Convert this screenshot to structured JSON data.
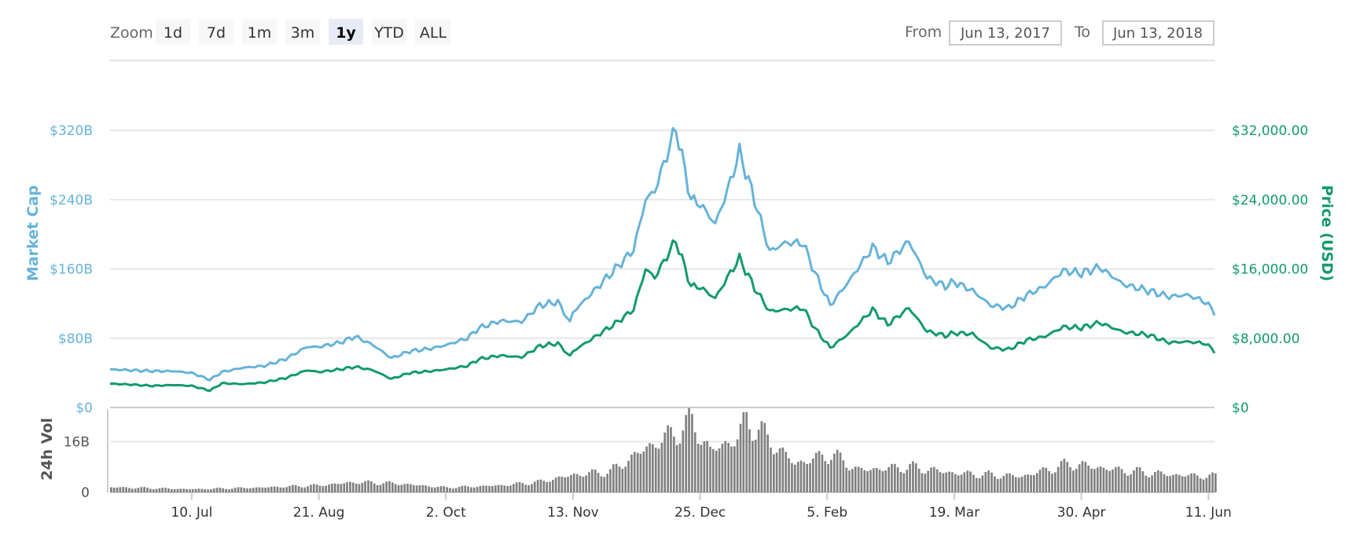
{
  "controls": {
    "zoom_label": "Zoom",
    "zoom_buttons": [
      "1d",
      "7d",
      "1m",
      "3m",
      "1y",
      "YTD",
      "ALL"
    ],
    "zoom_selected": "1y",
    "from_label": "From",
    "from_value": "Jun 13, 2017",
    "to_label": "To",
    "to_value": "Jun 13, 2018"
  },
  "chart_data": {
    "type": "line",
    "x_range": [
      "2017-06-13",
      "2018-06-13"
    ],
    "x_ticks": [
      "10. Jul",
      "21. Aug",
      "2. Oct",
      "13. Nov",
      "25. Dec",
      "5. Feb",
      "19. Mar",
      "30. Apr",
      "11. Jun"
    ],
    "y_left": {
      "label": "Market Cap",
      "ticks": [
        "$0",
        "$80B",
        "$160B",
        "$240B",
        "$320B"
      ],
      "range": [
        0,
        320
      ]
    },
    "y_right": {
      "label": "Price (USD)",
      "ticks": [
        "$0",
        "$8,000.00",
        "$16,000.00",
        "$24,000.00",
        "$32,000.00"
      ],
      "range": [
        0,
        32000
      ]
    },
    "volume": {
      "label": "24h Vol",
      "ticks": [
        "0",
        "16B"
      ],
      "range": [
        0,
        24
      ]
    },
    "grid": true,
    "legend": "none",
    "colors": {
      "market_cap": "#66b3d9",
      "price": "#139a6c",
      "volume": "#808080"
    },
    "series": [
      {
        "key": "market_cap",
        "unit": "B USD",
        "points": [
          [
            "2017-06-13",
            44
          ],
          [
            "2017-06-20",
            43
          ],
          [
            "2017-06-27",
            42
          ],
          [
            "2017-07-04",
            42
          ],
          [
            "2017-07-10",
            40
          ],
          [
            "2017-07-16",
            32
          ],
          [
            "2017-07-20",
            41
          ],
          [
            "2017-07-27",
            46
          ],
          [
            "2017-08-03",
            48
          ],
          [
            "2017-08-10",
            56
          ],
          [
            "2017-08-17",
            70
          ],
          [
            "2017-08-21",
            70
          ],
          [
            "2017-08-28",
            75
          ],
          [
            "2017-09-02",
            82
          ],
          [
            "2017-09-08",
            72
          ],
          [
            "2017-09-14",
            57
          ],
          [
            "2017-09-20",
            65
          ],
          [
            "2017-09-27",
            68
          ],
          [
            "2017-10-02",
            72
          ],
          [
            "2017-10-09",
            80
          ],
          [
            "2017-10-13",
            92
          ],
          [
            "2017-10-20",
            100
          ],
          [
            "2017-10-27",
            99
          ],
          [
            "2017-11-02",
            118
          ],
          [
            "2017-11-08",
            122
          ],
          [
            "2017-11-12",
            98
          ],
          [
            "2017-11-13",
            110
          ],
          [
            "2017-11-20",
            135
          ],
          [
            "2017-11-27",
            160
          ],
          [
            "2017-12-03",
            182
          ],
          [
            "2017-12-07",
            240
          ],
          [
            "2017-12-10",
            250
          ],
          [
            "2017-12-17",
            323
          ],
          [
            "2017-12-22",
            240
          ],
          [
            "2017-12-25",
            235
          ],
          [
            "2017-12-30",
            212
          ],
          [
            "2018-01-03",
            250
          ],
          [
            "2018-01-07",
            295
          ],
          [
            "2018-01-12",
            240
          ],
          [
            "2018-01-17",
            180
          ],
          [
            "2018-01-22",
            190
          ],
          [
            "2018-01-28",
            190
          ],
          [
            "2018-02-01",
            155
          ],
          [
            "2018-02-06",
            118
          ],
          [
            "2018-02-12",
            145
          ],
          [
            "2018-02-20",
            185
          ],
          [
            "2018-02-25",
            168
          ],
          [
            "2018-03-04",
            192
          ],
          [
            "2018-03-10",
            150
          ],
          [
            "2018-03-16",
            140
          ],
          [
            "2018-03-19",
            145
          ],
          [
            "2018-03-25",
            135
          ],
          [
            "2018-03-31",
            118
          ],
          [
            "2018-04-06",
            115
          ],
          [
            "2018-04-12",
            130
          ],
          [
            "2018-04-18,",
            140
          ],
          [
            "2018-04-24",
            158
          ],
          [
            "2018-04-30",
            155
          ],
          [
            "2018-05-06",
            162
          ],
          [
            "2018-05-14",
            142
          ],
          [
            "2018-05-22",
            135
          ],
          [
            "2018-05-29",
            128
          ],
          [
            "2018-06-04",
            130
          ],
          [
            "2018-06-10",
            122
          ],
          [
            "2018-06-13",
            110
          ]
        ]
      },
      {
        "key": "price",
        "unit": "USD",
        "points": [
          [
            "2017-06-13",
            2750
          ],
          [
            "2017-06-20",
            2650
          ],
          [
            "2017-06-27",
            2500
          ],
          [
            "2017-07-04",
            2600
          ],
          [
            "2017-07-10",
            2500
          ],
          [
            "2017-07-16",
            1950
          ],
          [
            "2017-07-20",
            2800
          ],
          [
            "2017-07-27",
            2700
          ],
          [
            "2017-08-03",
            2900
          ],
          [
            "2017-08-10",
            3400
          ],
          [
            "2017-08-17",
            4300
          ],
          [
            "2017-08-21",
            4100
          ],
          [
            "2017-08-28",
            4400
          ],
          [
            "2017-09-02",
            4700
          ],
          [
            "2017-09-08",
            4300
          ],
          [
            "2017-09-14",
            3300
          ],
          [
            "2017-09-20",
            4000
          ],
          [
            "2017-09-27",
            4200
          ],
          [
            "2017-10-02",
            4400
          ],
          [
            "2017-10-09",
            4800
          ],
          [
            "2017-10-13",
            5600
          ],
          [
            "2017-10-20",
            6000
          ],
          [
            "2017-10-27",
            5800
          ],
          [
            "2017-11-02",
            7100
          ],
          [
            "2017-11-08",
            7400
          ],
          [
            "2017-11-12",
            5900
          ],
          [
            "2017-11-13",
            6500
          ],
          [
            "2017-11-20",
            8100
          ],
          [
            "2017-11-27",
            9700
          ],
          [
            "2017-12-03",
            11300
          ],
          [
            "2017-12-07",
            16000
          ],
          [
            "2017-12-10",
            15000
          ],
          [
            "2017-12-17",
            19300
          ],
          [
            "2017-12-22",
            14000
          ],
          [
            "2017-12-25",
            13900
          ],
          [
            "2017-12-30",
            12600
          ],
          [
            "2018-01-03",
            15000
          ],
          [
            "2018-01-07",
            17200
          ],
          [
            "2018-01-12",
            13800
          ],
          [
            "2018-01-17",
            11100
          ],
          [
            "2018-01-22",
            11300
          ],
          [
            "2018-01-28",
            11500
          ],
          [
            "2018-02-01",
            9100
          ],
          [
            "2018-02-06",
            6900
          ],
          [
            "2018-02-12",
            8500
          ],
          [
            "2018-02-20",
            11300
          ],
          [
            "2018-02-25",
            9600
          ],
          [
            "2018-03-04",
            11500
          ],
          [
            "2018-03-10",
            8800
          ],
          [
            "2018-03-16",
            8300
          ],
          [
            "2018-03-19",
            8600
          ],
          [
            "2018-03-25",
            8500
          ],
          [
            "2018-03-31",
            6900
          ],
          [
            "2018-04-06",
            6700
          ],
          [
            "2018-04-12",
            7800
          ],
          [
            "2018-04-18",
            8200
          ],
          [
            "2018-04-24",
            9300
          ],
          [
            "2018-04-30",
            9200
          ],
          [
            "2018-05-06",
            9800
          ],
          [
            "2018-05-14",
            8700
          ],
          [
            "2018-05-22",
            8400
          ],
          [
            "2018-05-29",
            7500
          ],
          [
            "2018-06-04",
            7600
          ],
          [
            "2018-06-10",
            7400
          ],
          [
            "2018-06-13",
            6500
          ]
        ]
      },
      {
        "key": "volume",
        "unit": "B USD",
        "points": [
          [
            "2017-06-13",
            1.6
          ],
          [
            "2017-07-10",
            1.0
          ],
          [
            "2017-08-01",
            1.5
          ],
          [
            "2017-08-21",
            2.2
          ],
          [
            "2017-09-02",
            3.2
          ],
          [
            "2017-09-15",
            2.8
          ],
          [
            "2017-10-02",
            1.5
          ],
          [
            "2017-10-20",
            2.2
          ],
          [
            "2017-11-01",
            3.2
          ],
          [
            "2017-11-13",
            5.5
          ],
          [
            "2017-11-25",
            6.5
          ],
          [
            "2017-12-07",
            14
          ],
          [
            "2017-12-15",
            18
          ],
          [
            "2017-12-22",
            22
          ],
          [
            "2017-12-28",
            13
          ],
          [
            "2018-01-06",
            17
          ],
          [
            "2018-01-09",
            23
          ],
          [
            "2018-01-17",
            16
          ],
          [
            "2018-01-25",
            9
          ],
          [
            "2018-02-06",
            12
          ],
          [
            "2018-02-15",
            7
          ],
          [
            "2018-03-04",
            8
          ],
          [
            "2018-03-19",
            6
          ],
          [
            "2018-04-10",
            5
          ],
          [
            "2018-04-26",
            9
          ],
          [
            "2018-05-12",
            7
          ],
          [
            "2018-05-30",
            5.5
          ],
          [
            "2018-06-13",
            5
          ]
        ]
      }
    ]
  }
}
